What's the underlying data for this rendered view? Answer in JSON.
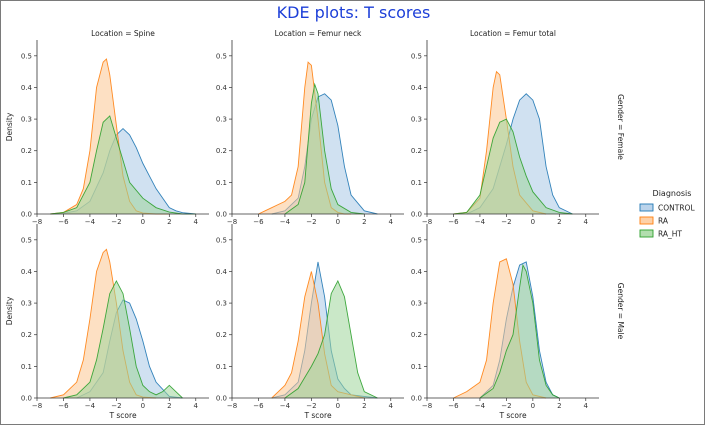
{
  "chart_data": {
    "type": "area",
    "title": "KDE plots: T scores",
    "xlabel": "T score",
    "ylabel": "Density",
    "xlim": [
      -8,
      5
    ],
    "ylim": [
      0,
      0.55
    ],
    "xticks": [
      -8,
      -6,
      -4,
      -2,
      0,
      2,
      4
    ],
    "yticks": [
      0.0,
      0.1,
      0.2,
      0.3,
      0.4,
      0.5
    ],
    "col_titles": [
      "Location = Spine",
      "Location = Femur neck",
      "Location = Femur total"
    ],
    "row_titles": [
      "Gender = Female",
      "Gender = Male"
    ],
    "legend": {
      "title": "Diagnosis",
      "items": [
        {
          "name": "CONTROL",
          "color": "#1f77b4",
          "fill": "#a9c8e6"
        },
        {
          "name": "RA",
          "color": "#ff7f0e",
          "fill": "#fcc692"
        },
        {
          "name": "RA_HT",
          "color": "#2ca02c",
          "fill": "#9fd69a"
        }
      ]
    },
    "panels": [
      {
        "row": 0,
        "col": 0,
        "series": [
          {
            "name": "CONTROL",
            "x": [
              -7,
              -6,
              -5,
              -4,
              -3,
              -2.5,
              -2,
              -1.5,
              -1,
              -0.5,
              0,
              0.5,
              1,
              1.5,
              2,
              2.5,
              3,
              4
            ],
            "y": [
              0,
              0.002,
              0.01,
              0.04,
              0.13,
              0.2,
              0.25,
              0.27,
              0.25,
              0.21,
              0.16,
              0.12,
              0.08,
              0.05,
              0.02,
              0.01,
              0.004,
              0
            ]
          },
          {
            "name": "RA",
            "x": [
              -7,
              -6,
              -5,
              -4.5,
              -4,
              -3.5,
              -3,
              -2.75,
              -2.5,
              -2,
              -1.5,
              -1,
              -0.5,
              0,
              1,
              2
            ],
            "y": [
              0,
              0.005,
              0.03,
              0.08,
              0.2,
              0.4,
              0.48,
              0.49,
              0.44,
              0.28,
              0.12,
              0.04,
              0.01,
              0.003,
              0,
              0
            ]
          },
          {
            "name": "RA_HT",
            "x": [
              -7,
              -6,
              -5,
              -4,
              -3.5,
              -3,
              -2.5,
              -2,
              -1.5,
              -1,
              0,
              1,
              2,
              3,
              4
            ],
            "y": [
              0,
              0.005,
              0.02,
              0.1,
              0.2,
              0.29,
              0.31,
              0.24,
              0.17,
              0.1,
              0.05,
              0.02,
              0.006,
              0,
              0
            ]
          }
        ]
      },
      {
        "row": 0,
        "col": 1,
        "series": [
          {
            "name": "CONTROL",
            "x": [
              -5,
              -4,
              -3,
              -2.5,
              -2,
              -1.5,
              -1,
              -0.5,
              0,
              0.5,
              1,
              2,
              3
            ],
            "y": [
              0,
              0.01,
              0.05,
              0.15,
              0.3,
              0.37,
              0.38,
              0.36,
              0.28,
              0.15,
              0.06,
              0.01,
              0
            ]
          },
          {
            "name": "RA",
            "x": [
              -6,
              -5.5,
              -5,
              -4.5,
              -4,
              -3.5,
              -3,
              -2.5,
              -2.25,
              -2,
              -1.5,
              -1,
              -0.5,
              0,
              0.5,
              1
            ],
            "y": [
              0,
              0.01,
              0.02,
              0.03,
              0.04,
              0.06,
              0.15,
              0.4,
              0.48,
              0.47,
              0.3,
              0.1,
              0.02,
              0.005,
              0,
              0
            ]
          },
          {
            "name": "RA_HT",
            "x": [
              -4,
              -3,
              -2.5,
              -2,
              -1.75,
              -1.5,
              -1,
              -0.5,
              0,
              1,
              2
            ],
            "y": [
              0,
              0.03,
              0.1,
              0.35,
              0.41,
              0.38,
              0.2,
              0.08,
              0.03,
              0.005,
              0
            ]
          }
        ]
      },
      {
        "row": 0,
        "col": 2,
        "series": [
          {
            "name": "CONTROL",
            "x": [
              -5,
              -4,
              -3,
              -2.5,
              -2,
              -1.5,
              -1,
              -0.5,
              0,
              0.5,
              1,
              1.5,
              2,
              3
            ],
            "y": [
              0,
              0.02,
              0.08,
              0.15,
              0.22,
              0.3,
              0.36,
              0.38,
              0.36,
              0.3,
              0.15,
              0.06,
              0.02,
              0
            ]
          },
          {
            "name": "RA",
            "x": [
              -6,
              -5,
              -4,
              -3.5,
              -3,
              -2.75,
              -2.5,
              -2,
              -1.5,
              -1,
              0,
              1
            ],
            "y": [
              0,
              0.005,
              0.05,
              0.2,
              0.4,
              0.45,
              0.44,
              0.3,
              0.15,
              0.06,
              0.01,
              0
            ]
          },
          {
            "name": "RA_HT",
            "x": [
              -6,
              -5,
              -4,
              -3.5,
              -3,
              -2.5,
              -2,
              -1.5,
              -1,
              -0.5,
              0,
              1,
              2,
              3
            ],
            "y": [
              0,
              0.005,
              0.06,
              0.15,
              0.24,
              0.29,
              0.3,
              0.26,
              0.18,
              0.12,
              0.07,
              0.02,
              0.005,
              0
            ]
          }
        ]
      },
      {
        "row": 1,
        "col": 0,
        "series": [
          {
            "name": "CONTROL",
            "x": [
              -5,
              -4,
              -3,
              -2.5,
              -2,
              -1.5,
              -1,
              -0.5,
              0,
              0.5,
              1,
              2,
              3
            ],
            "y": [
              0,
              0.02,
              0.08,
              0.18,
              0.27,
              0.31,
              0.3,
              0.25,
              0.18,
              0.1,
              0.05,
              0.005,
              0
            ]
          },
          {
            "name": "RA",
            "x": [
              -7,
              -6,
              -5,
              -4.5,
              -4,
              -3.5,
              -3,
              -2.75,
              -2.5,
              -2,
              -1.5,
              -1,
              -0.5,
              0,
              1
            ],
            "y": [
              0,
              0.01,
              0.05,
              0.12,
              0.25,
              0.4,
              0.46,
              0.47,
              0.43,
              0.3,
              0.15,
              0.05,
              0.01,
              0.003,
              0
            ]
          },
          {
            "name": "RA_HT",
            "x": [
              -6,
              -5,
              -4,
              -3.5,
              -3,
              -2.5,
              -2,
              -1.5,
              -1,
              -0.5,
              0,
              0.5,
              1,
              1.5,
              2,
              2.5,
              3
            ],
            "y": [
              0,
              0.01,
              0.05,
              0.12,
              0.22,
              0.33,
              0.37,
              0.33,
              0.22,
              0.1,
              0.04,
              0.02,
              0.01,
              0.02,
              0.04,
              0.02,
              0
            ]
          }
        ]
      },
      {
        "row": 1,
        "col": 1,
        "series": [
          {
            "name": "CONTROL",
            "x": [
              -5,
              -4,
              -3,
              -2.5,
              -2,
              -1.5,
              -1,
              -0.5,
              0,
              0.5,
              1,
              2,
              3
            ],
            "y": [
              0,
              0.01,
              0.05,
              0.15,
              0.3,
              0.43,
              0.32,
              0.15,
              0.06,
              0.03,
              0.01,
              0.005,
              0
            ]
          },
          {
            "name": "RA",
            "x": [
              -5,
              -4.5,
              -4,
              -3.5,
              -3,
              -2.5,
              -2,
              -1.5,
              -1,
              -0.5,
              0,
              1,
              2
            ],
            "y": [
              0,
              0.02,
              0.04,
              0.08,
              0.18,
              0.32,
              0.4,
              0.3,
              0.14,
              0.04,
              0.02,
              0.01,
              0
            ]
          },
          {
            "name": "RA_HT",
            "x": [
              -4,
              -3,
              -2,
              -1.5,
              -1,
              -0.5,
              0,
              0.5,
              1,
              1.5,
              2,
              3
            ],
            "y": [
              0,
              0.03,
              0.1,
              0.14,
              0.2,
              0.33,
              0.37,
              0.32,
              0.2,
              0.08,
              0.02,
              0
            ]
          }
        ]
      },
      {
        "row": 1,
        "col": 2,
        "series": [
          {
            "name": "CONTROL",
            "x": [
              -4,
              -3,
              -2.5,
              -2,
              -1.5,
              -1,
              -0.5,
              0,
              0.5,
              1,
              1.5,
              2
            ],
            "y": [
              0,
              0.04,
              0.12,
              0.25,
              0.35,
              0.42,
              0.43,
              0.32,
              0.15,
              0.05,
              0.01,
              0
            ]
          },
          {
            "name": "RA",
            "x": [
              -6,
              -5,
              -4,
              -3.5,
              -3,
              -2.5,
              -2,
              -1.5,
              -1,
              -0.5,
              0,
              1
            ],
            "y": [
              0,
              0.02,
              0.05,
              0.12,
              0.3,
              0.43,
              0.44,
              0.36,
              0.18,
              0.05,
              0.01,
              0
            ]
          },
          {
            "name": "RA_HT",
            "x": [
              -4,
              -3,
              -2.5,
              -2,
              -1.5,
              -1,
              -0.75,
              -0.5,
              0,
              0.5,
              1,
              1.5,
              2
            ],
            "y": [
              0,
              0.03,
              0.08,
              0.15,
              0.2,
              0.35,
              0.42,
              0.4,
              0.3,
              0.12,
              0.04,
              0.01,
              0
            ]
          }
        ]
      }
    ]
  }
}
